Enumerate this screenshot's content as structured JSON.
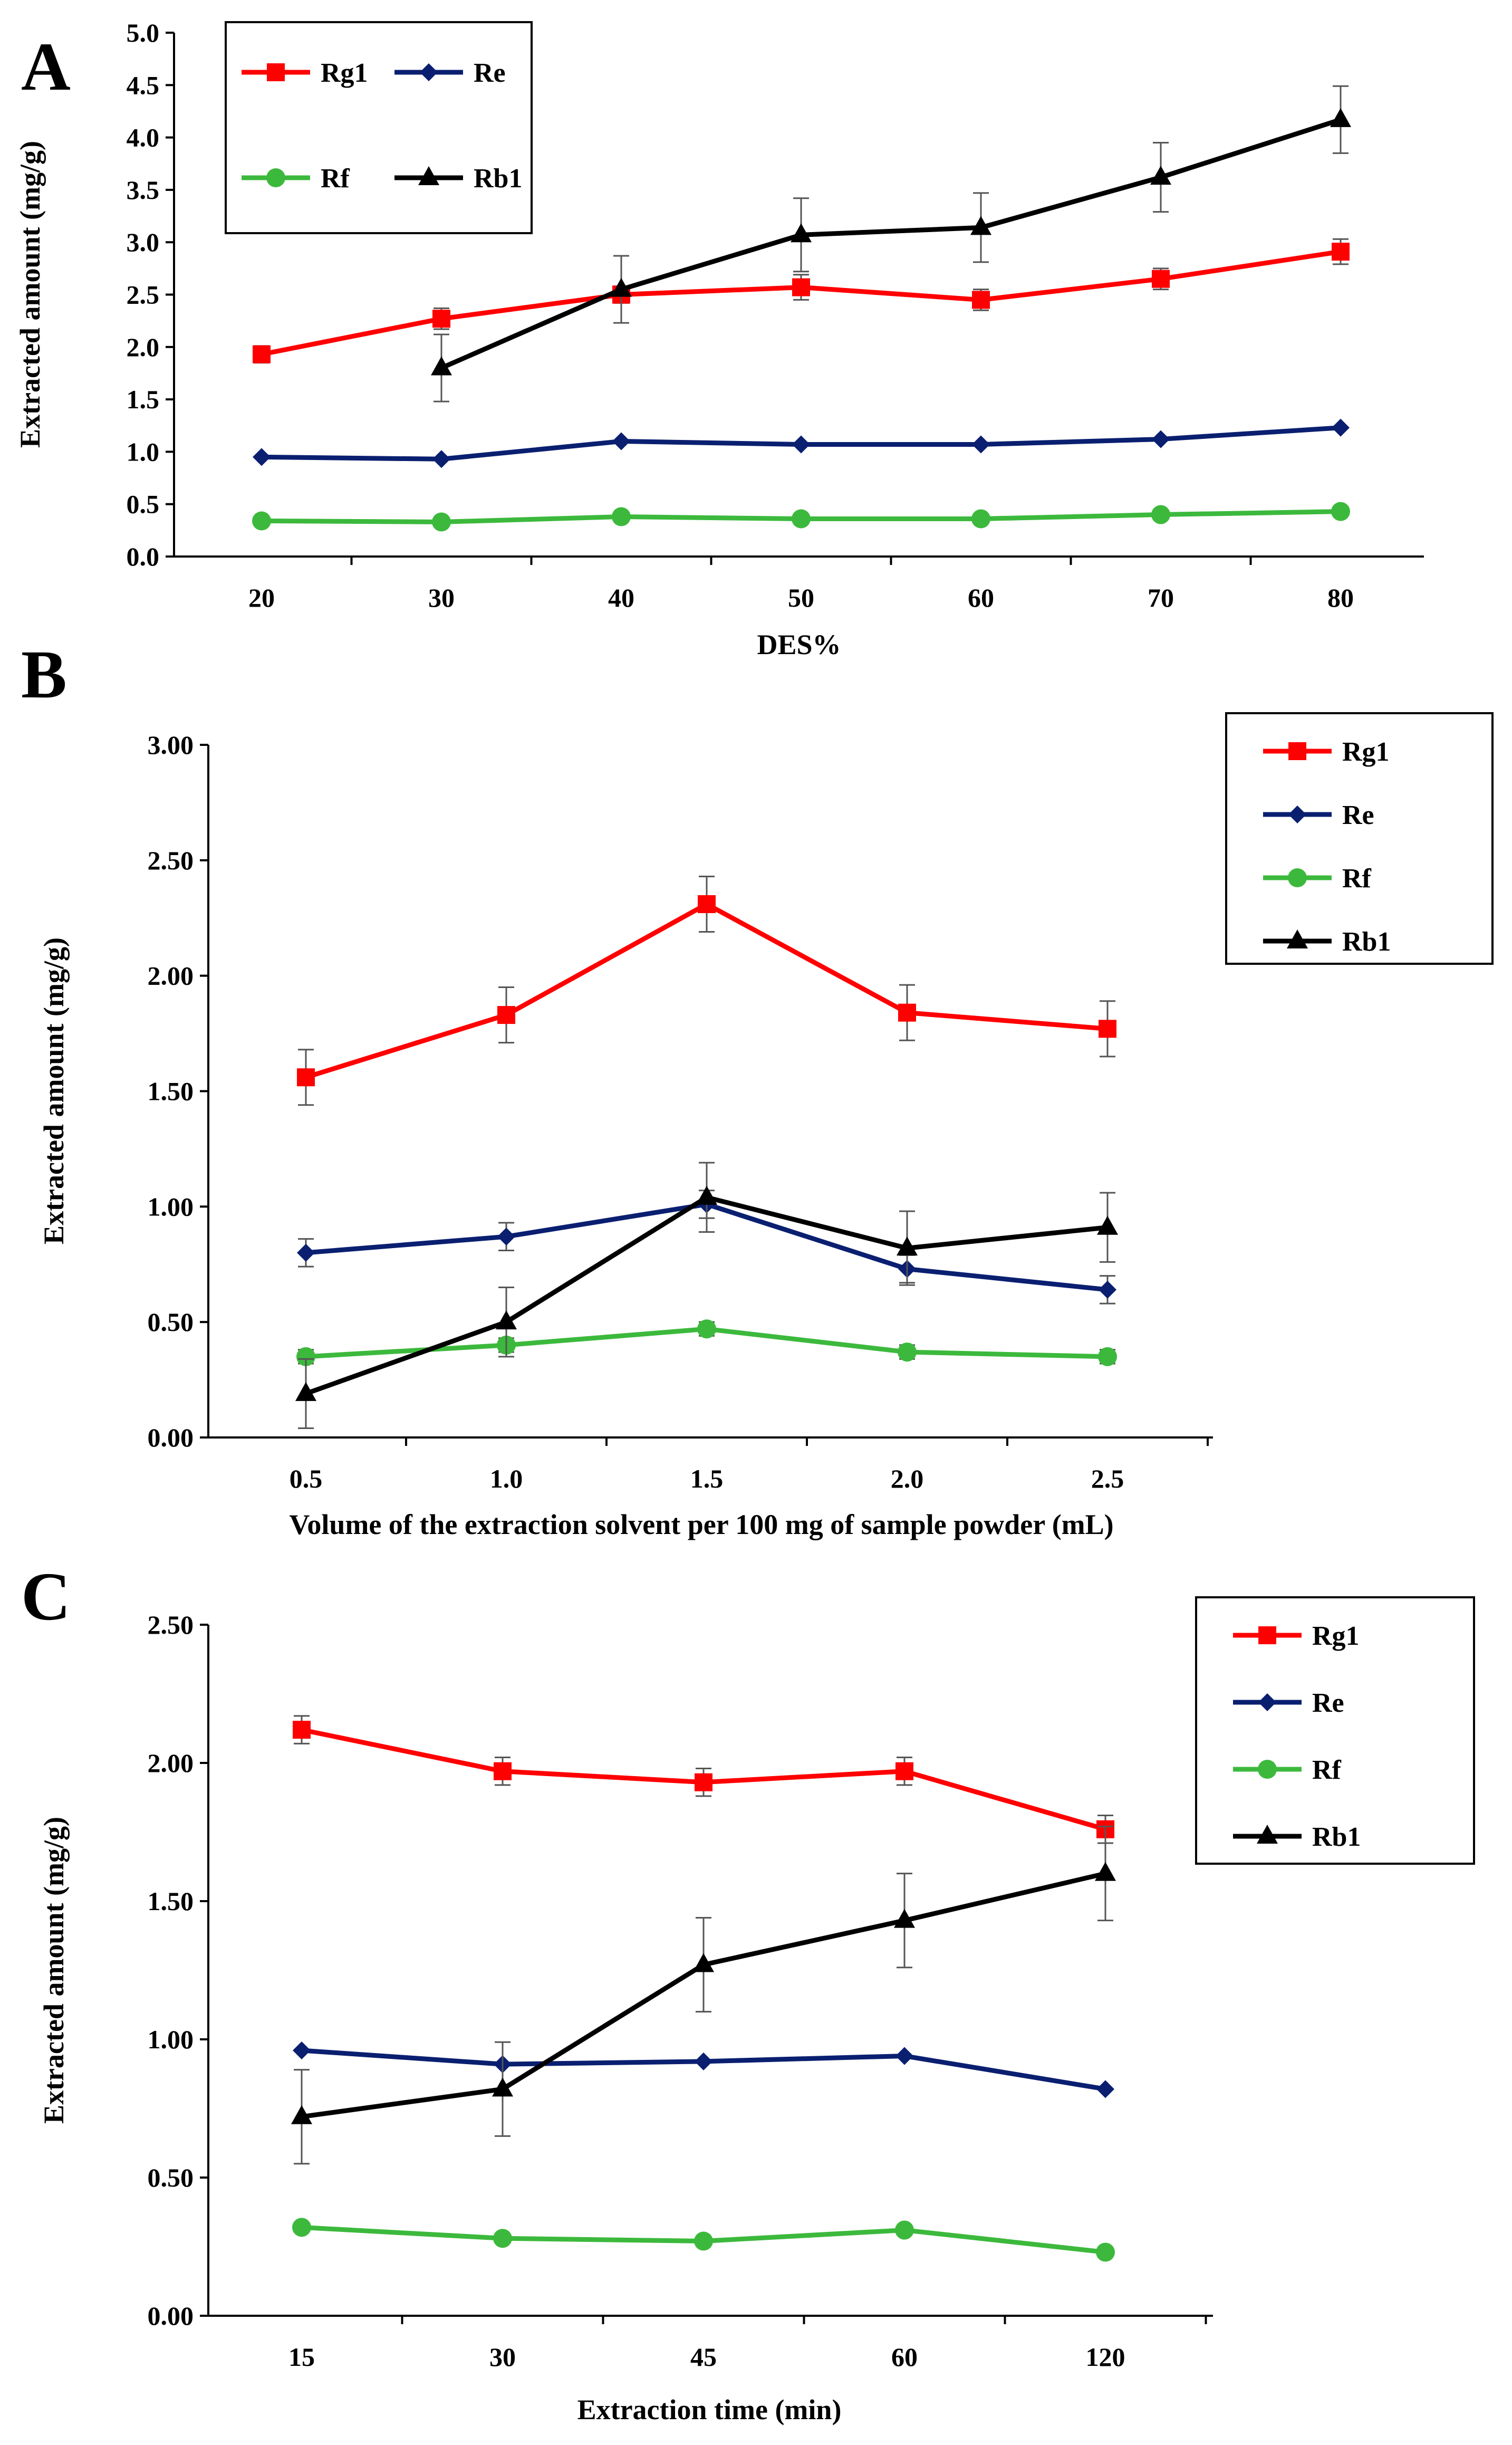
{
  "chart_data": [
    {
      "panel": "A",
      "type": "line",
      "xlabel": "DES%",
      "ylabel": "Extracted amount (mg/g)",
      "categories": [
        "20",
        "30",
        "40",
        "50",
        "60",
        "70",
        "80"
      ],
      "ylim": [
        0,
        5
      ],
      "yticks": [
        "0.0",
        "0.5",
        "1.0",
        "1.5",
        "2.0",
        "2.5",
        "3.0",
        "3.5",
        "4.0",
        "4.5",
        "5.0"
      ],
      "grid": false,
      "legend": "top-left",
      "series": [
        {
          "name": "Rg1",
          "color": "#ff0000",
          "marker": "square",
          "values": [
            1.93,
            2.27,
            2.5,
            2.57,
            2.45,
            2.65,
            2.91
          ],
          "errors": [
            0.08,
            0.1,
            0.08,
            0.12,
            0.1,
            0.1,
            0.12
          ]
        },
        {
          "name": "Re",
          "color": "#0a1f70",
          "marker": "diamond",
          "values": [
            0.95,
            0.93,
            1.1,
            1.07,
            1.07,
            1.12,
            1.23
          ],
          "errors": [
            0,
            0,
            0,
            0,
            0,
            0,
            0
          ]
        },
        {
          "name": "Rf",
          "color": "#3cb93c",
          "marker": "circle",
          "values": [
            0.34,
            0.33,
            0.38,
            0.36,
            0.36,
            0.4,
            0.43
          ],
          "errors": [
            0,
            0,
            0,
            0,
            0,
            0,
            0
          ]
        },
        {
          "name": "Rb1",
          "color": "#000000",
          "marker": "triangle",
          "values": [
            null,
            1.8,
            2.55,
            3.07,
            3.14,
            3.62,
            4.17
          ],
          "errors": [
            0,
            0.32,
            0.32,
            0.35,
            0.33,
            0.33,
            0.32
          ]
        }
      ]
    },
    {
      "panel": "B",
      "type": "line",
      "xlabel": "Volume of the extraction solvent per 100 mg of sample powder  (mL)",
      "ylabel": "Extracted amount (mg/g)",
      "categories": [
        "0.5",
        "1.0",
        "1.5",
        "2.0",
        "2.5"
      ],
      "ylim": [
        0,
        3
      ],
      "yticks": [
        "0.00",
        "0.50",
        "1.00",
        "1.50",
        "2.00",
        "2.50",
        "3.00"
      ],
      "grid": false,
      "legend": "top-right",
      "series": [
        {
          "name": "Rg1",
          "color": "#ff0000",
          "marker": "square",
          "values": [
            1.56,
            1.83,
            2.31,
            1.84,
            1.77
          ],
          "errors": [
            0.12,
            0.12,
            0.12,
            0.12,
            0.12
          ]
        },
        {
          "name": "Re",
          "color": "#0a1f70",
          "marker": "diamond",
          "values": [
            0.8,
            0.87,
            1.01,
            0.73,
            0.64
          ],
          "errors": [
            0.06,
            0.06,
            0.06,
            0.06,
            0.06
          ]
        },
        {
          "name": "Rf",
          "color": "#3cb93c",
          "marker": "circle",
          "values": [
            0.35,
            0.4,
            0.47,
            0.37,
            0.35
          ],
          "errors": [
            0.03,
            0.03,
            0.03,
            0.03,
            0.03
          ]
        },
        {
          "name": "Rb1",
          "color": "#000000",
          "marker": "triangle",
          "values": [
            0.19,
            0.5,
            1.04,
            0.82,
            0.91
          ],
          "errors": [
            0.15,
            0.15,
            0.15,
            0.16,
            0.15
          ]
        }
      ]
    },
    {
      "panel": "C",
      "type": "line",
      "xlabel": "Extraction time (min)",
      "ylabel": "Extracted amount (mg/g)",
      "categories": [
        "15",
        "30",
        "45",
        "60",
        "120"
      ],
      "ylim": [
        0,
        2.5
      ],
      "yticks": [
        "0.00",
        "0.50",
        "1.00",
        "1.50",
        "2.00",
        "2.50"
      ],
      "grid": false,
      "legend": "top-right",
      "series": [
        {
          "name": "Rg1",
          "color": "#ff0000",
          "marker": "square",
          "values": [
            2.12,
            1.97,
            1.93,
            1.97,
            1.76
          ],
          "errors": [
            0.05,
            0.05,
            0.05,
            0.05,
            0.05
          ]
        },
        {
          "name": "Re",
          "color": "#0a1f70",
          "marker": "diamond",
          "values": [
            0.96,
            0.91,
            0.92,
            0.94,
            0.82
          ],
          "errors": [
            0,
            0,
            0,
            0,
            0
          ]
        },
        {
          "name": "Rf",
          "color": "#3cb93c",
          "marker": "circle",
          "values": [
            0.32,
            0.28,
            0.27,
            0.31,
            0.23
          ],
          "errors": [
            0,
            0,
            0,
            0,
            0
          ]
        },
        {
          "name": "Rb1",
          "color": "#000000",
          "marker": "triangle",
          "values": [
            0.72,
            0.82,
            1.27,
            1.43,
            1.6
          ],
          "errors": [
            0.17,
            0.17,
            0.17,
            0.17,
            0.17
          ]
        }
      ]
    }
  ]
}
